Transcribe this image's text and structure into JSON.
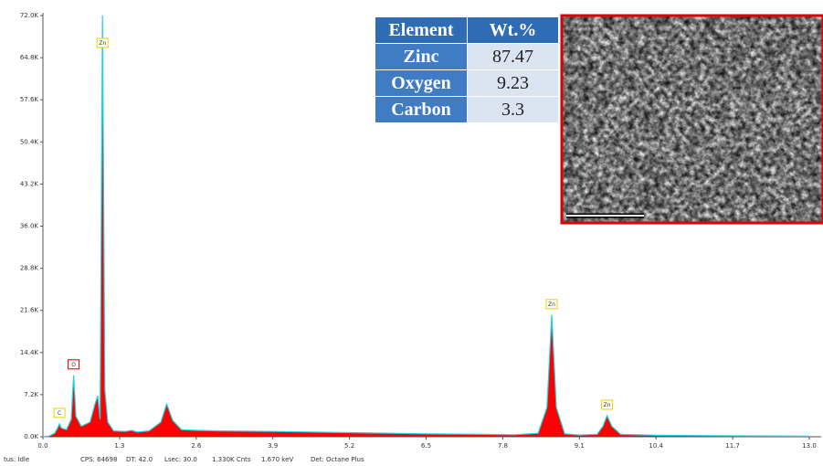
{
  "chart_data": {
    "type": "area",
    "x": [
      0.0,
      0.1,
      0.2,
      0.25,
      0.28,
      0.31,
      0.4,
      0.48,
      0.52,
      0.56,
      0.65,
      0.8,
      0.88,
      0.93,
      0.97,
      1.01,
      1.05,
      1.1,
      1.2,
      1.4,
      1.5,
      1.6,
      1.8,
      2.0,
      2.1,
      2.2,
      2.35,
      2.6,
      3.0,
      3.9,
      5.2,
      6.5,
      7.5,
      8.0,
      8.4,
      8.55,
      8.63,
      8.71,
      8.85,
      9.1,
      9.4,
      9.5,
      9.57,
      9.65,
      9.8,
      10.4,
      11.7,
      13.0
    ],
    "values": [
      0,
      100,
      600,
      1500,
      2200,
      1500,
      1200,
      3000,
      10500,
      3500,
      1800,
      2500,
      5500,
      7000,
      3000,
      72000,
      8000,
      2500,
      1000,
      900,
      1100,
      800,
      1000,
      2500,
      5600,
      2800,
      1200,
      1100,
      1000,
      900,
      700,
      500,
      400,
      350,
      600,
      5000,
      20800,
      5000,
      500,
      300,
      400,
      1800,
      3600,
      1800,
      400,
      250,
      150,
      100
    ],
    "color": "#ff0000",
    "line_color": "#19d3e6",
    "xlim": [
      0,
      13
    ],
    "ylim": [
      0,
      72000
    ],
    "xticks": [
      {
        "value": 0,
        "label": "0.0"
      },
      1.3,
      2.6,
      3.9,
      5.2,
      6.5,
      7.8,
      9.1,
      10.4,
      11.7,
      {
        "value": 13,
        "label": "13.0"
      }
    ],
    "yticks": [
      {
        "value": 0,
        "label": "0.0K"
      },
      {
        "value": 7200,
        "label": "7.2K"
      },
      {
        "value": 14400,
        "label": "14.4K"
      },
      {
        "value": 21600,
        "label": "21.6K"
      },
      {
        "value": 28800,
        "label": "28.8K"
      },
      {
        "value": 36000,
        "label": "36.0K"
      },
      {
        "value": 43200,
        "label": "43.2K"
      },
      {
        "value": 50400,
        "label": "50.4K"
      },
      {
        "value": 57600,
        "label": "57.6K"
      },
      {
        "value": 64800,
        "label": "64.8K"
      },
      {
        "value": 72000,
        "label": "72.0K"
      }
    ],
    "annotations": [
      {
        "text": "C",
        "x": 0.28,
        "color": "#e6d200"
      },
      {
        "text": "O",
        "x": 0.52,
        "color": "#e00000"
      },
      {
        "text": "Zn",
        "x": 1.01,
        "color": "#e6d200"
      },
      {
        "text": "Zn",
        "x": 8.63,
        "color": "#e6d200"
      },
      {
        "text": "Zn",
        "x": 9.57,
        "color": "#e6d200"
      }
    ]
  },
  "table": {
    "header": [
      "Element",
      "Wt.%"
    ],
    "rows": [
      [
        "Zinc",
        "87.47"
      ],
      [
        "Oxygen",
        "9.23"
      ],
      [
        "Carbon",
        "3.3"
      ]
    ]
  },
  "status_bar": [
    "tus: Idle",
    "CPS: 64698",
    "DT: 42.0",
    "Lsec: 30.0",
    "1.330K Cnts",
    "1.670 keV",
    "Det: Octane Plus"
  ]
}
